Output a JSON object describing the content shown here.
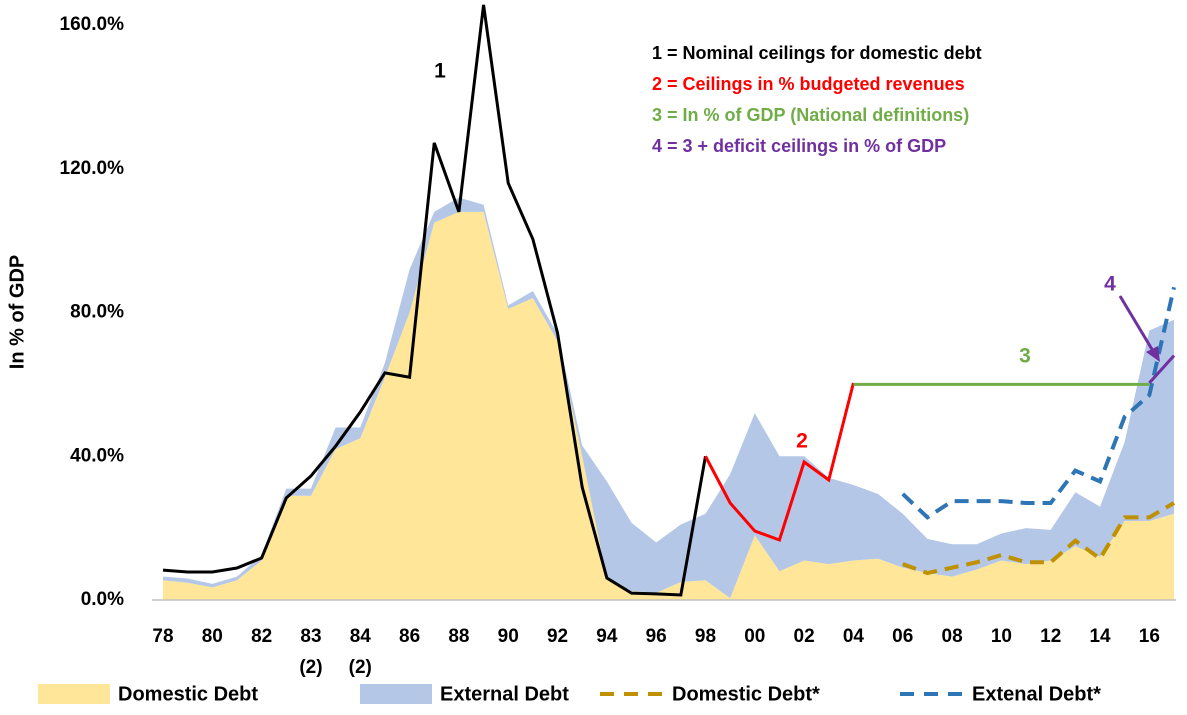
{
  "chart_data": {
    "type": "area",
    "y_label": "In % of GDP",
    "categories": [
      "78",
      null,
      "80",
      null,
      "82",
      null,
      "83",
      null,
      "84",
      null,
      "86",
      null,
      "88",
      null,
      "90",
      null,
      "92",
      null,
      "94",
      null,
      "96",
      null,
      "98",
      null,
      "00",
      null,
      "02",
      null,
      "04",
      null,
      "06",
      null,
      "08",
      null,
      "10",
      null,
      "12",
      null,
      "14",
      null,
      "16",
      null
    ],
    "category_notes": [
      null,
      null,
      null,
      null,
      null,
      null,
      "(2)",
      null,
      "(2)",
      null,
      null,
      null,
      null,
      null,
      null,
      null,
      null,
      null,
      null,
      null,
      null,
      null,
      null,
      null,
      null,
      null,
      null,
      null,
      null,
      null,
      null,
      null,
      null,
      null,
      null,
      null,
      null,
      null,
      null,
      null,
      null,
      null
    ],
    "ylim": [
      0,
      165.6
    ],
    "yticks": [
      {
        "value": 0,
        "label": "0.0%"
      },
      {
        "value": 40,
        "label": "40.0%"
      },
      {
        "value": 80,
        "label": "80.0%"
      },
      {
        "value": 120,
        "label": "120.0%"
      },
      {
        "value": 160,
        "label": "160.0%"
      }
    ],
    "series": [
      {
        "name": "Domestic Debt",
        "kind": "area",
        "color": "#FFE699",
        "values": [
          5.5,
          4.8,
          3.5,
          5.5,
          11,
          29,
          29,
          42,
          45,
          62,
          80,
          105,
          108,
          108,
          81,
          84,
          72,
          40,
          6,
          2.5,
          2,
          5,
          5.5,
          0.5,
          18,
          8,
          11,
          10,
          11,
          11.5,
          9,
          7.5,
          6.5,
          8.5,
          11,
          10,
          11,
          15,
          12,
          22,
          22,
          24
        ]
      },
      {
        "name": "External Debt",
        "kind": "area",
        "color": "#B4C7E7",
        "values": [
          1,
          1.2,
          1,
          1,
          1.5,
          2,
          2,
          6,
          3,
          4,
          12,
          3,
          4,
          2,
          1,
          2,
          2,
          3,
          27,
          19,
          14,
          16,
          18.5,
          34.5,
          34,
          32,
          29,
          24,
          21,
          18,
          15,
          9.5,
          9,
          7,
          7.5,
          10,
          8.5,
          15,
          14,
          22,
          53,
          54
        ]
      },
      {
        "name": "Domestic Debt*",
        "kind": "dashed",
        "color": "#BF9000",
        "values": [
          null,
          null,
          null,
          null,
          null,
          null,
          null,
          null,
          null,
          null,
          null,
          null,
          null,
          null,
          null,
          null,
          null,
          null,
          null,
          null,
          null,
          null,
          null,
          null,
          null,
          null,
          null,
          null,
          null,
          null,
          10,
          7.5,
          9,
          10.5,
          12.5,
          10.5,
          10.5,
          16.5,
          11.5,
          23,
          23,
          27
        ]
      },
      {
        "name": "Extenal Debt*",
        "kind": "dashed",
        "color": "#2E75B6",
        "values": [
          null,
          null,
          null,
          null,
          null,
          null,
          null,
          null,
          null,
          null,
          null,
          null,
          null,
          null,
          null,
          null,
          null,
          null,
          null,
          null,
          null,
          null,
          null,
          null,
          null,
          null,
          null,
          null,
          null,
          null,
          29.5,
          23,
          27.5,
          27.5,
          27.5,
          27,
          27,
          36,
          33,
          51,
          57,
          87
        ]
      }
    ],
    "ceiling_lines": [
      {
        "name": "1 = Nominal ceilings for domestic debt",
        "marker": "1",
        "color": "#000000",
        "values": [
          8.3,
          7.8,
          7.8,
          8.9,
          11.7,
          28.4,
          34.5,
          42.8,
          52.3,
          63.2,
          62,
          127.2,
          108,
          165.6,
          116,
          100.4,
          74.3,
          31.4,
          6.1,
          1.9,
          1.7,
          1.4,
          40,
          null,
          null,
          null,
          null,
          null,
          null,
          null,
          null,
          null,
          null,
          null,
          null,
          null,
          null,
          null,
          null,
          null,
          null,
          null
        ]
      },
      {
        "name": "2 = Ceilings in % budgeted revenues",
        "marker": "2",
        "color": "#FF0000",
        "values": [
          null,
          null,
          null,
          null,
          null,
          null,
          null,
          null,
          null,
          null,
          null,
          null,
          null,
          null,
          null,
          null,
          null,
          null,
          null,
          null,
          null,
          null,
          40,
          27,
          19.2,
          16.7,
          38.4,
          33.4,
          60.4,
          null,
          null,
          null,
          null,
          null,
          null,
          null,
          null,
          null,
          null,
          null,
          null,
          null
        ]
      },
      {
        "name": "3 = In % of GDP (National definitions)",
        "marker": "3",
        "color": "#70AD47",
        "values": [
          null,
          null,
          null,
          null,
          null,
          null,
          null,
          null,
          null,
          null,
          null,
          null,
          null,
          null,
          null,
          null,
          null,
          null,
          null,
          null,
          null,
          null,
          null,
          null,
          null,
          null,
          null,
          null,
          60,
          60,
          60,
          60,
          60,
          60,
          60,
          60,
          60,
          60,
          60,
          60,
          60,
          null
        ]
      },
      {
        "name": "4 = 3 + deficit ceilings in % of GDP",
        "marker": "4",
        "color": "#7030A0",
        "values": [
          null,
          null,
          null,
          null,
          null,
          null,
          null,
          null,
          null,
          null,
          null,
          null,
          null,
          null,
          null,
          null,
          null,
          null,
          null,
          null,
          null,
          null,
          null,
          null,
          null,
          null,
          null,
          null,
          null,
          null,
          null,
          null,
          null,
          null,
          null,
          null,
          null,
          null,
          null,
          null,
          60.4,
          68
        ]
      }
    ]
  }
}
